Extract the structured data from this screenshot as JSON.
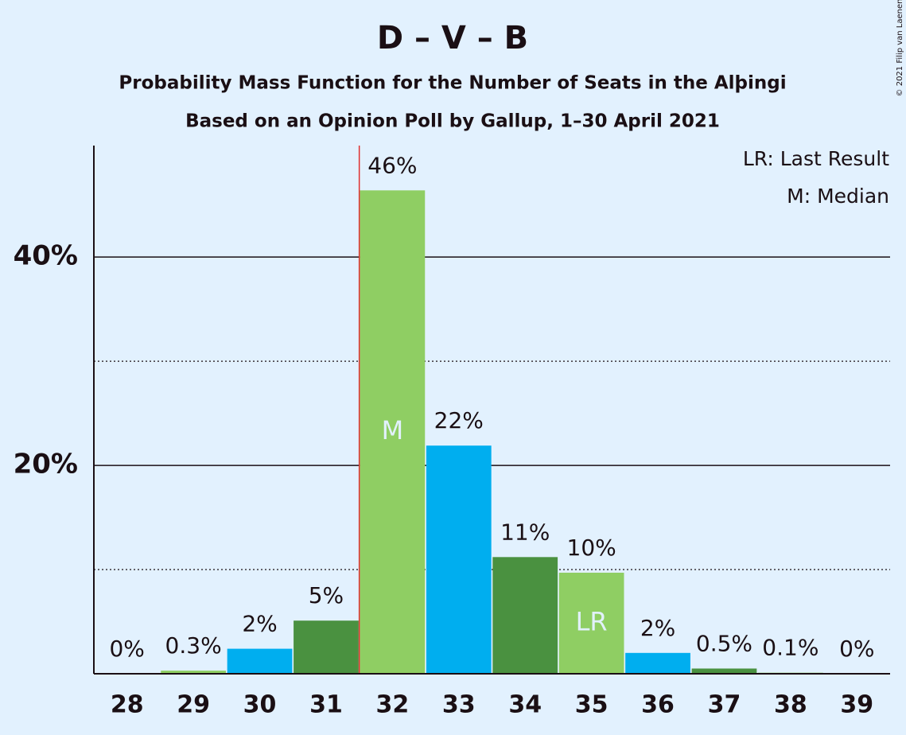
{
  "chart_data": {
    "type": "bar",
    "title": "D – V – B",
    "subtitle": "Probability Mass Function for the Number of Seats in the Alþingi",
    "subtitle2": "Based on an Opinion Poll by Gallup, 1–30 April 2021",
    "copyright": "© 2021 Filip van Laenen",
    "categories": [
      "28",
      "29",
      "30",
      "31",
      "32",
      "33",
      "34",
      "35",
      "36",
      "37",
      "38",
      "39"
    ],
    "values": [
      0,
      0.3,
      2.4,
      5.1,
      46.4,
      21.9,
      11.2,
      9.7,
      2.0,
      0.5,
      0.1,
      0
    ],
    "value_labels": [
      "0%",
      "0.3%",
      "2%",
      "5%",
      "46%",
      "22%",
      "11%",
      "10%",
      "2%",
      "0.5%",
      "0.1%",
      "0%"
    ],
    "colors": [
      "#4a9140",
      "#8fce63",
      "#00aeef",
      "#4a9140",
      "#8fce63",
      "#00aeef",
      "#4a9140",
      "#8fce63",
      "#00aeef",
      "#4a9140",
      "#8fce63",
      "#00aeef"
    ],
    "ylim": [
      0,
      50.7
    ],
    "yticks": [
      {
        "value": 20,
        "label": "20%"
      },
      {
        "value": 40,
        "label": "40%"
      }
    ],
    "minor_yticks": [
      10,
      30
    ],
    "grid": true,
    "majority_line_before": "32",
    "bar_annotations": [
      {
        "category": "32",
        "label": "M"
      },
      {
        "category": "35",
        "label": "LR"
      }
    ],
    "legend": [
      "LR: Last Result",
      "M: Median"
    ]
  }
}
